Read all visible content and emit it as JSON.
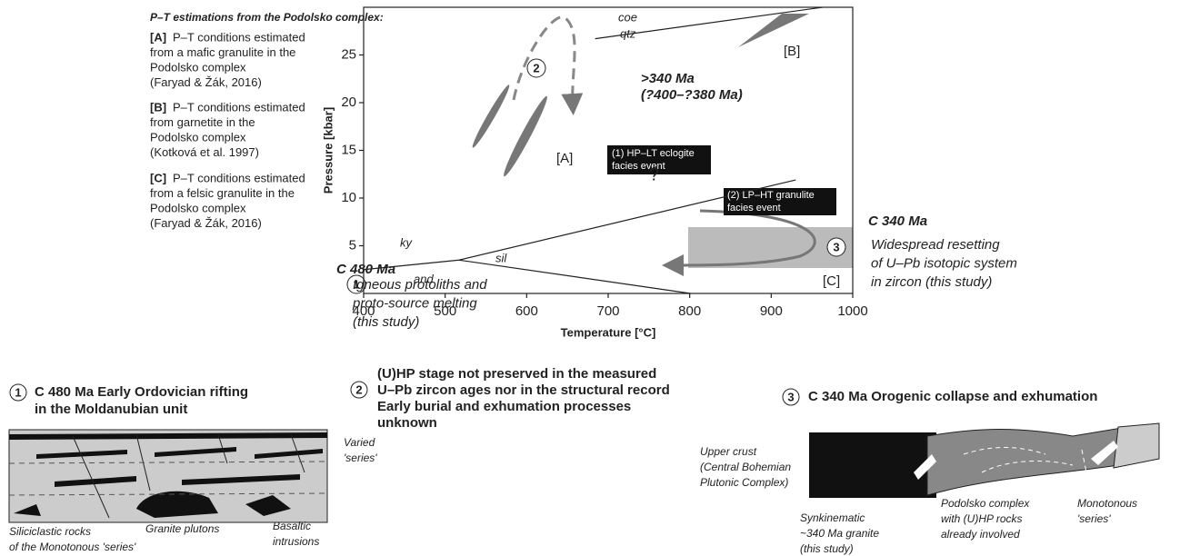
{
  "legend": {
    "title": "P–T estimations from the Podolsko complex:",
    "items": [
      {
        "key": "[A]",
        "lines": [
          "P–T conditions estimated",
          "from a mafic granulite in the",
          "Podolsko complex",
          "(Faryad & Žák, 2016)"
        ]
      },
      {
        "key": "[B]",
        "lines": [
          "P–T conditions estimated",
          "from garnetite in the",
          "Podolsko complex",
          "(Kotková et al. 1997)"
        ]
      },
      {
        "key": "[C]",
        "lines": [
          "P–T conditions estimated",
          "from a felsic granulite in the",
          "Podolsko complex",
          "(Faryad & Žák, 2016)"
        ]
      }
    ]
  },
  "chart_data": {
    "type": "line",
    "xlabel": "Temperature [°C]",
    "ylabel": "Pressure [kbar]",
    "xlim": [
      400,
      1000
    ],
    "ylim": [
      0,
      30
    ],
    "xticks": [
      400,
      500,
      600,
      700,
      800,
      900,
      1000
    ],
    "yticks": [
      5,
      10,
      15,
      20,
      25
    ],
    "reactions": [
      {
        "x": [
          684,
          963
        ],
        "y": [
          26.7,
          30
        ]
      },
      {
        "x": [
          400,
          517
        ],
        "y": [
          2.5,
          3.5
        ]
      },
      {
        "x": [
          517,
          930
        ],
        "y": [
          3.5,
          11.9
        ]
      },
      {
        "x": [
          517,
          801
        ],
        "y": [
          3.5,
          0
        ]
      }
    ],
    "field_labels": [
      "coe",
      "qtz",
      "ky",
      "sil",
      "and"
    ],
    "box_labels": [
      "[A]",
      "[B]",
      "[C]"
    ],
    "event1": [
      "(1) HP–LT eclogite",
      "facies event"
    ],
    "event2": [
      "(2) LP–HT granulite",
      "facies event"
    ],
    "age_hp": [
      ">340 Ma",
      "(?400–?380 Ma)"
    ],
    "question": "?",
    "markers": [
      "1",
      "2",
      "3"
    ],
    "left_note": {
      "title": "C 480 Ma",
      "lines": [
        "Igneous protoliths and",
        "proto-source melting",
        "(this study)"
      ]
    },
    "right_note": {
      "title": "C 340 Ma",
      "lines": [
        "Widespread resetting",
        "of U–Pb isotopic system",
        "in zircon (this study)"
      ]
    }
  },
  "panels": [
    {
      "marker": "1",
      "title": [
        "C 480 Ma Early Ordovician rifting",
        "in the Moldanubian unit"
      ],
      "labels": [
        [
          "Varied",
          "'series'"
        ],
        [
          "Granite plutons"
        ],
        [
          "Basaltic",
          "intrusions"
        ],
        [
          "Siliciclastic rocks",
          "of the Monotonous 'series'"
        ]
      ]
    },
    {
      "marker": "2",
      "title": [
        "(U)HP stage not preserved in the measured",
        "U–Pb zircon ages nor in the structural record",
        "Early burial and exhumation processes",
        "unknown"
      ],
      "labels": []
    },
    {
      "marker": "3",
      "title": [
        "C 340 Ma Orogenic collapse and exhumation"
      ],
      "labels": [
        [
          "Upper crust",
          "(Central Bohemian",
          "Plutonic Complex)"
        ],
        [
          "Synkinematic",
          "~340 Ma granite",
          "(this study)"
        ],
        [
          "Podolsko complex",
          "with (U)HP rocks",
          "already involved"
        ],
        [
          "Monotonous",
          "'series'"
        ]
      ]
    }
  ]
}
